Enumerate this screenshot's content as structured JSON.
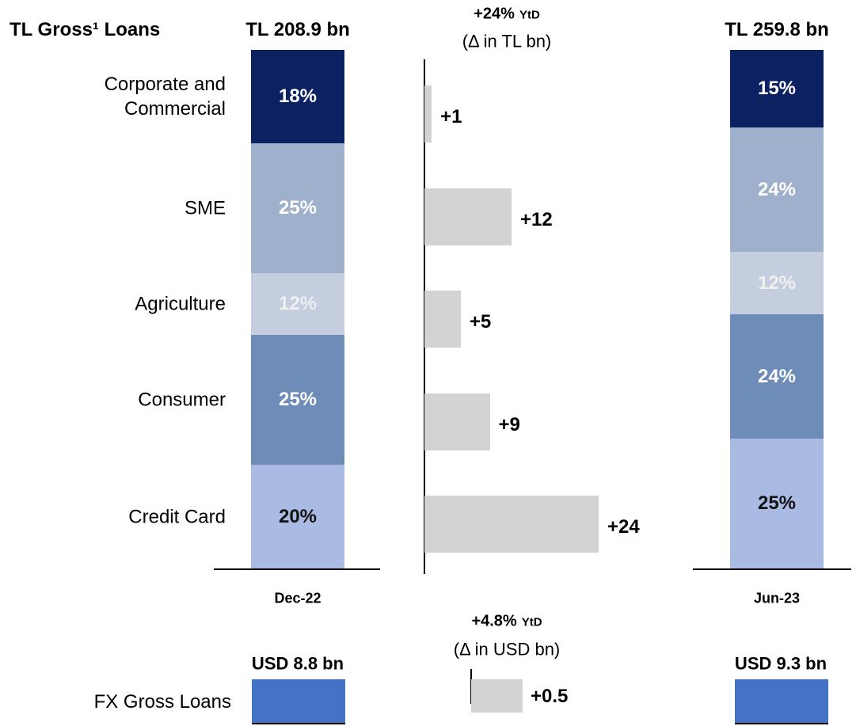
{
  "chart_data": [
    {
      "type": "stacked_bar",
      "title": "TL Gross¹ Loans",
      "categories": [
        "Corporate and Commercial",
        "SME",
        "Agriculture",
        "Consumer",
        "Credit Card"
      ],
      "colors": [
        "#0b2161",
        "#9eb0cc",
        "#c4cedf",
        "#6e8cb8",
        "#a9bbe3"
      ],
      "label_colors": [
        "#ffffff",
        "#ffffff",
        "#f0f0f0",
        "#ffffff",
        "#111111"
      ],
      "ylim": [
        0,
        100
      ],
      "series": [
        {
          "name": "Dec-22",
          "total_label": "TL 208.9 bn",
          "values": [
            18,
            25,
            12,
            25,
            20
          ],
          "value_labels": [
            "18%",
            "25%",
            "12%",
            "25%",
            "20%"
          ]
        },
        {
          "name": "Jun-23",
          "total_label": "TL 259.8 bn",
          "values": [
            15,
            24,
            12,
            24,
            25
          ],
          "value_labels": [
            "15%",
            "24%",
            "12%",
            "24%",
            "25%"
          ]
        }
      ]
    },
    {
      "type": "delta_bar",
      "title": "+24%",
      "title_note": "YtD",
      "subtitle": "(Δ in TL bn)",
      "values": [
        1,
        12,
        5,
        9,
        24
      ],
      "value_labels": [
        "+1",
        "+12",
        "+5",
        "+9",
        "+24"
      ],
      "color": "#d3d3d3",
      "xlim": [
        0,
        24
      ]
    },
    {
      "type": "fx_bar",
      "title": "+4.8%",
      "title_note": "YtD",
      "subtitle": "(Δ in USD bn)",
      "category": "FX Gross Loans",
      "values": [
        0.5
      ],
      "value_labels": [
        "+0.5"
      ],
      "color": "#d3d3d3",
      "xlim": [
        0,
        0.5
      ],
      "totals": [
        "USD 8.8 bn",
        "USD 9.3 bn"
      ],
      "total_color": "#4472c4"
    }
  ]
}
